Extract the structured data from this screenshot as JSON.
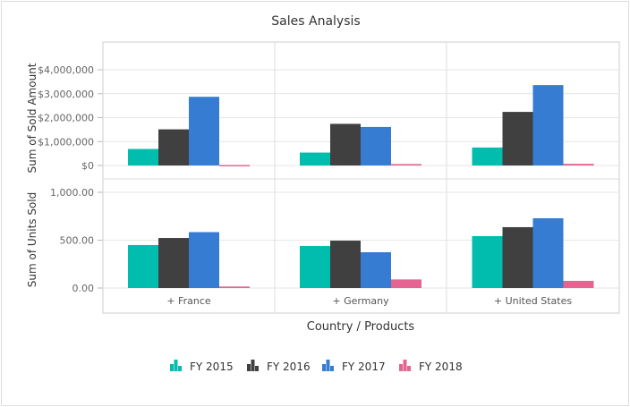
{
  "chart_data": {
    "type": "bar",
    "title": "Sales Analysis",
    "xlabel": "Country / Products",
    "categories": [
      "+ France",
      "+ Germany",
      "+ United States"
    ],
    "legend_position": "bottom",
    "grid": true,
    "colors": [
      "#00bdae",
      "#404041",
      "#357cd2",
      "#e56590"
    ],
    "panels": [
      {
        "ylabel": "Sum of Sold Amount",
        "ylim": [
          0,
          4000000
        ],
        "ticks": [
          0,
          1000000,
          2000000,
          3000000,
          4000000
        ],
        "tick_labels": [
          "$0",
          "$1,000,000",
          "$2,000,000",
          "$3,000,000",
          "$4,000,000"
        ],
        "series": [
          {
            "name": "FY 2015",
            "values": [
              690000,
              540000,
              750000
            ]
          },
          {
            "name": "FY 2016",
            "values": [
              1510000,
              1740000,
              2240000
            ]
          },
          {
            "name": "FY 2017",
            "values": [
              2870000,
              1610000,
              3360000
            ]
          },
          {
            "name": "FY 2018",
            "values": [
              20000,
              60000,
              70000
            ]
          }
        ]
      },
      {
        "ylabel": "Sum of Units Sold",
        "ylim": [
          0,
          1000
        ],
        "ticks": [
          0,
          500,
          1000
        ],
        "tick_labels": [
          "0.00",
          "500.00",
          "1,000.00"
        ],
        "series": [
          {
            "name": "FY 2015",
            "values": [
              449,
              439,
              542
            ]
          },
          {
            "name": "FY 2016",
            "values": [
              523,
              495,
              636
            ]
          },
          {
            "name": "FY 2017",
            "values": [
              584,
              374,
              729
            ]
          },
          {
            "name": "FY 2018",
            "values": [
              16,
              90,
              75
            ]
          }
        ]
      }
    ],
    "legend": [
      "FY 2015",
      "FY 2016",
      "FY 2017",
      "FY 2018"
    ]
  }
}
